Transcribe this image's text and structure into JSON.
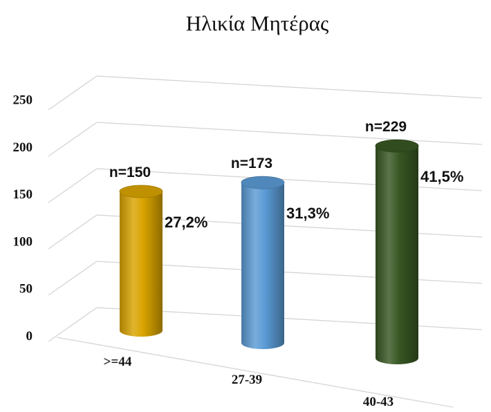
{
  "chart_data": {
    "type": "bar",
    "style": "3d-cylinder",
    "title": "Ηλικία Μητέρας",
    "xlabel": "",
    "ylabel": "",
    "ylim": [
      0,
      250
    ],
    "yticks": [
      0,
      50,
      100,
      150,
      200,
      250
    ],
    "grid": true,
    "legend": "none",
    "categories": [
      ">=44",
      "27-39",
      "40-43"
    ],
    "values": [
      150,
      173,
      229
    ],
    "count_labels": [
      "n=150",
      "n=173",
      "n=229"
    ],
    "percent_labels": [
      "27,2%",
      "31,3%",
      "41,5%"
    ],
    "colors": [
      "#D9A400",
      "#5B9BD5",
      "#385723"
    ]
  }
}
